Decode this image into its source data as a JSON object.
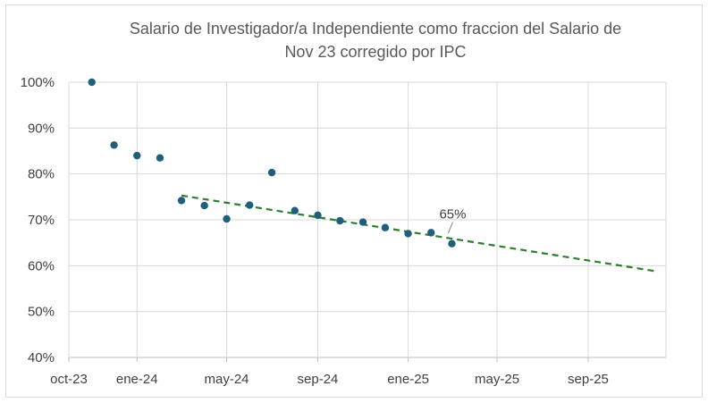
{
  "chart_data": {
    "type": "scatter",
    "title_line1": "Salario de Investigador/a Independiente como fraccion del  Salario de",
    "title_line2": "Nov 23 corregido por IPC",
    "x_ticks": [
      "oct-23",
      "ene-24",
      "may-24",
      "sep-24",
      "ene-25",
      "may-25",
      "sep-25"
    ],
    "y_ticks": [
      "40%",
      "50%",
      "60%",
      "70%",
      "80%",
      "90%",
      "100%"
    ],
    "ylim": [
      40,
      100
    ],
    "xlim": [
      "2023-10-01",
      "2025-12-15"
    ],
    "grid": true,
    "points": [
      {
        "x": "2023-11-01",
        "y": 100.0
      },
      {
        "x": "2023-12-01",
        "y": 86.3
      },
      {
        "x": "2024-01-01",
        "y": 84.0
      },
      {
        "x": "2024-02-01",
        "y": 83.5
      },
      {
        "x": "2024-03-01",
        "y": 74.2
      },
      {
        "x": "2024-04-01",
        "y": 73.1
      },
      {
        "x": "2024-05-01",
        "y": 70.2
      },
      {
        "x": "2024-06-01",
        "y": 73.2
      },
      {
        "x": "2024-07-01",
        "y": 80.3
      },
      {
        "x": "2024-08-01",
        "y": 72.0
      },
      {
        "x": "2024-09-01",
        "y": 71.0
      },
      {
        "x": "2024-10-01",
        "y": 69.8
      },
      {
        "x": "2024-11-01",
        "y": 69.5
      },
      {
        "x": "2024-12-01",
        "y": 68.3
      },
      {
        "x": "2025-01-01",
        "y": 67.0
      },
      {
        "x": "2025-02-01",
        "y": 67.2
      },
      {
        "x": "2025-03-01",
        "y": 64.8
      }
    ],
    "trendline": {
      "style": "dashed",
      "color": "#2e7d32",
      "start": {
        "x": "2024-03-01",
        "y": 75.3
      },
      "end": {
        "x": "2025-12-01",
        "y": 58.8
      }
    },
    "annotation": {
      "text": "65%",
      "x": "2025-03-01",
      "y": 64.8
    },
    "marker_color": "#1f5f7a"
  }
}
